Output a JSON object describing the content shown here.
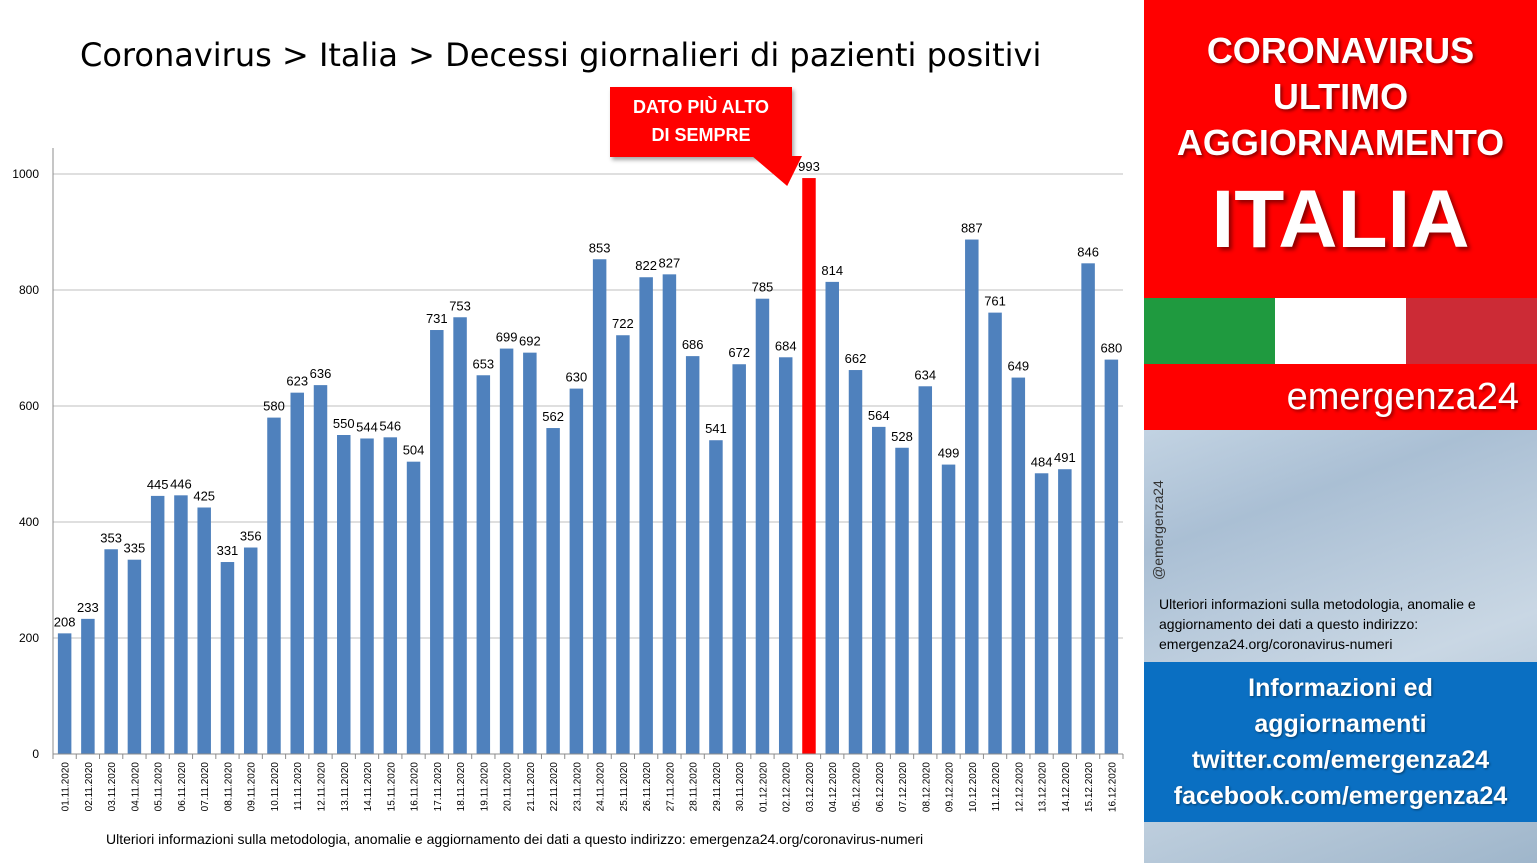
{
  "title": "Coronavirus > Italia > Decessi giornalieri di pazienti positivi",
  "callout": {
    "line1": "DATO PIÙ ALTO",
    "line2": "DI SEMPRE"
  },
  "footer_note": "Ulteriori informazioni sulla metodologia, anomalie e aggiornamento dei dati a questo indirizzo: emergenza24.org/coronavirus-numeri",
  "panel": {
    "line1": "CORONAVIRUS",
    "line2": "ULTIMO",
    "line3": "AGGIORNAMENTO",
    "line4": "ITALIA",
    "brand": "emergenza24",
    "handle": "@emergenza24",
    "info": "Ulteriori informazioni sulla metodologia, anomalie e aggiornamento dei dati a questo indirizzo: emergenza24.org/coronavirus-numeri",
    "social": [
      "Informazioni ed",
      "aggiornamenti",
      "twitter.com/emergenza24",
      "facebook.com/emergenza24"
    ]
  },
  "colors": {
    "bar": "#4f81bd",
    "highlight": "#ff0000",
    "panel_red": "#ff0000",
    "panel_blue": "#0a6fc2"
  },
  "chart_data": {
    "type": "bar",
    "title": "Coronavirus > Italia > Decessi giornalieri di pazienti positivi",
    "categories": [
      "01.11.2020",
      "02.11.2020",
      "03.11.2020",
      "04.11.2020",
      "05.11.2020",
      "06.11.2020",
      "07.11.2020",
      "08.11.2020",
      "09.11.2020",
      "10.11.2020",
      "11.11.2020",
      "12.11.2020",
      "13.11.2020",
      "14.11.2020",
      "15.11.2020",
      "16.11.2020",
      "17.11.2020",
      "18.11.2020",
      "19.11.2020",
      "20.11.2020",
      "21.11.2020",
      "22.11.2020",
      "23.11.2020",
      "24.11.2020",
      "25.11.2020",
      "26.11.2020",
      "27.11.2020",
      "28.11.2020",
      "29.11.2020",
      "30.11.2020",
      "01.12.2020",
      "02.12.2020",
      "03.12.2020",
      "04.12.2020",
      "05.12.2020",
      "06.12.2020",
      "07.12.2020",
      "08.12.2020",
      "09.12.2020",
      "10.12.2020",
      "11.12.2020",
      "12.12.2020",
      "13.12.2020",
      "14.12.2020",
      "15.12.2020",
      "16.12.2020"
    ],
    "values": [
      208,
      233,
      353,
      335,
      445,
      446,
      425,
      331,
      356,
      580,
      623,
      636,
      550,
      544,
      546,
      504,
      731,
      753,
      653,
      699,
      692,
      562,
      630,
      853,
      722,
      822,
      827,
      686,
      541,
      672,
      785,
      684,
      993,
      814,
      662,
      564,
      528,
      634,
      499,
      887,
      761,
      649,
      484,
      491,
      846,
      680
    ],
    "highlight_category": "03.12.2020",
    "ylim": [
      0,
      1000
    ],
    "yticks": [
      0,
      200,
      400,
      600,
      800,
      1000
    ],
    "xlabel": "",
    "ylabel": "",
    "grid": true
  }
}
